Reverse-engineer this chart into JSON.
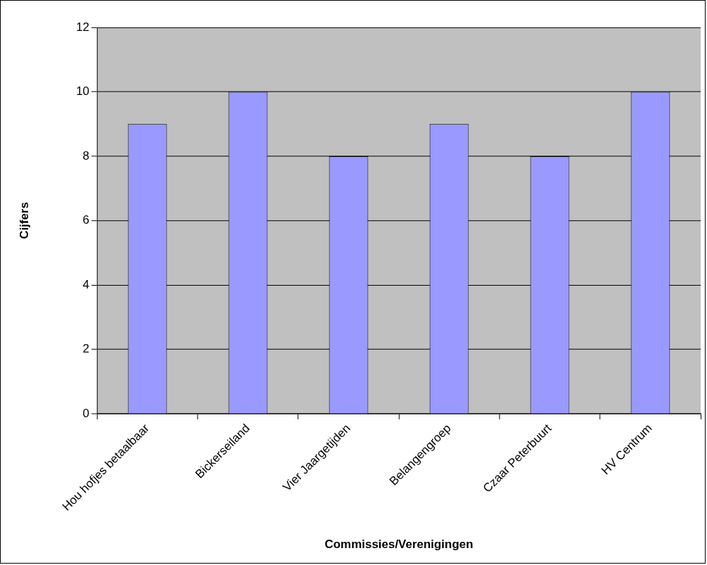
{
  "chart_data": {
    "type": "bar",
    "xlabel": "Commissies/Verenigingen",
    "ylabel": "Cijfers",
    "categories": [
      "Hou hofjes betaalbaar",
      "Bickerseiland",
      "Vier Jaargetijden",
      "Belangengroep",
      "Czaar Peterbuurt",
      "HV Centrum"
    ],
    "values": [
      9,
      10,
      8,
      9,
      8,
      10
    ],
    "color": "#9999ff",
    "ylim": [
      0,
      12
    ],
    "yticks": [
      0,
      2,
      4,
      6,
      8,
      10,
      12
    ],
    "grid": "y",
    "legend": false
  }
}
